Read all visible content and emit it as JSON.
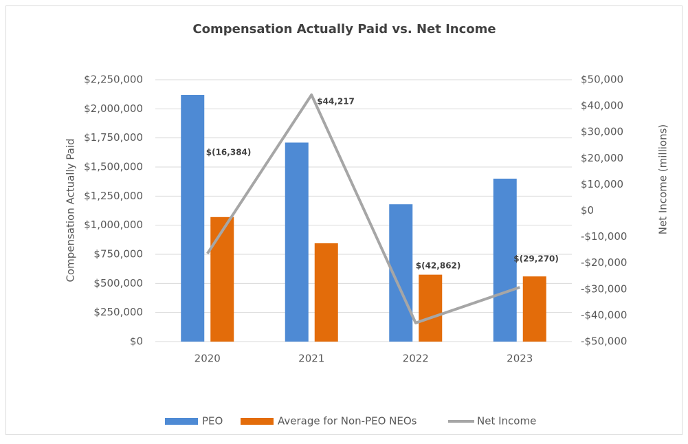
{
  "chart_data": {
    "type": "bar-line",
    "title": "Compensation Actually Paid vs. Net Income",
    "y_label": "Compensation Actually Paid",
    "y2_label": "Net Income (millions)",
    "categories": [
      "2020",
      "2021",
      "2022",
      "2023"
    ],
    "series": [
      {
        "name": "PEO",
        "type": "bar",
        "color": "#4e8ad4",
        "values": [
          2120000,
          1710000,
          1180000,
          1400000
        ]
      },
      {
        "name": "Average for Non-PEO NEOs",
        "type": "bar",
        "color": "#e36c0a",
        "values": [
          1070000,
          845000,
          575000,
          560000
        ]
      },
      {
        "name": "Net Income",
        "type": "line",
        "axis": "y2",
        "color": "#a6a6a6",
        "values": [
          -16384,
          44217,
          -42862,
          -29270
        ],
        "value_labels": [
          "$(16,384)",
          "$44,217",
          "$(42,862)",
          "$(29,270)"
        ]
      }
    ],
    "ylim": [
      0,
      2250000
    ],
    "yticks": [
      {
        "value": 0,
        "label": "$0"
      },
      {
        "value": 250000,
        "label": "$250,000"
      },
      {
        "value": 500000,
        "label": "$500,000"
      },
      {
        "value": 750000,
        "label": "$750,000"
      },
      {
        "value": 1000000,
        "label": "$1,000,000"
      },
      {
        "value": 1250000,
        "label": "$1,250,000"
      },
      {
        "value": 1500000,
        "label": "$1,500,000"
      },
      {
        "value": 1750000,
        "label": "$1,750,000"
      },
      {
        "value": 2000000,
        "label": "$2,000,000"
      },
      {
        "value": 2250000,
        "label": "$2,250,000"
      }
    ],
    "y2lim": [
      -50000,
      50000
    ],
    "y2ticks": [
      {
        "value": -50000,
        "label": "-$50,000"
      },
      {
        "value": -40000,
        "label": "-$40,000"
      },
      {
        "value": -30000,
        "label": "-$30,000"
      },
      {
        "value": -20000,
        "label": "-$20,000"
      },
      {
        "value": -10000,
        "label": "-$10,000"
      },
      {
        "value": 0,
        "label": "$0"
      },
      {
        "value": 10000,
        "label": "$10,000"
      },
      {
        "value": 20000,
        "label": "$20,000"
      },
      {
        "value": 30000,
        "label": "$30,000"
      },
      {
        "value": 40000,
        "label": "$40,000"
      },
      {
        "value": 50000,
        "label": "$50,000"
      }
    ],
    "grid": true,
    "legend": "bottom"
  }
}
